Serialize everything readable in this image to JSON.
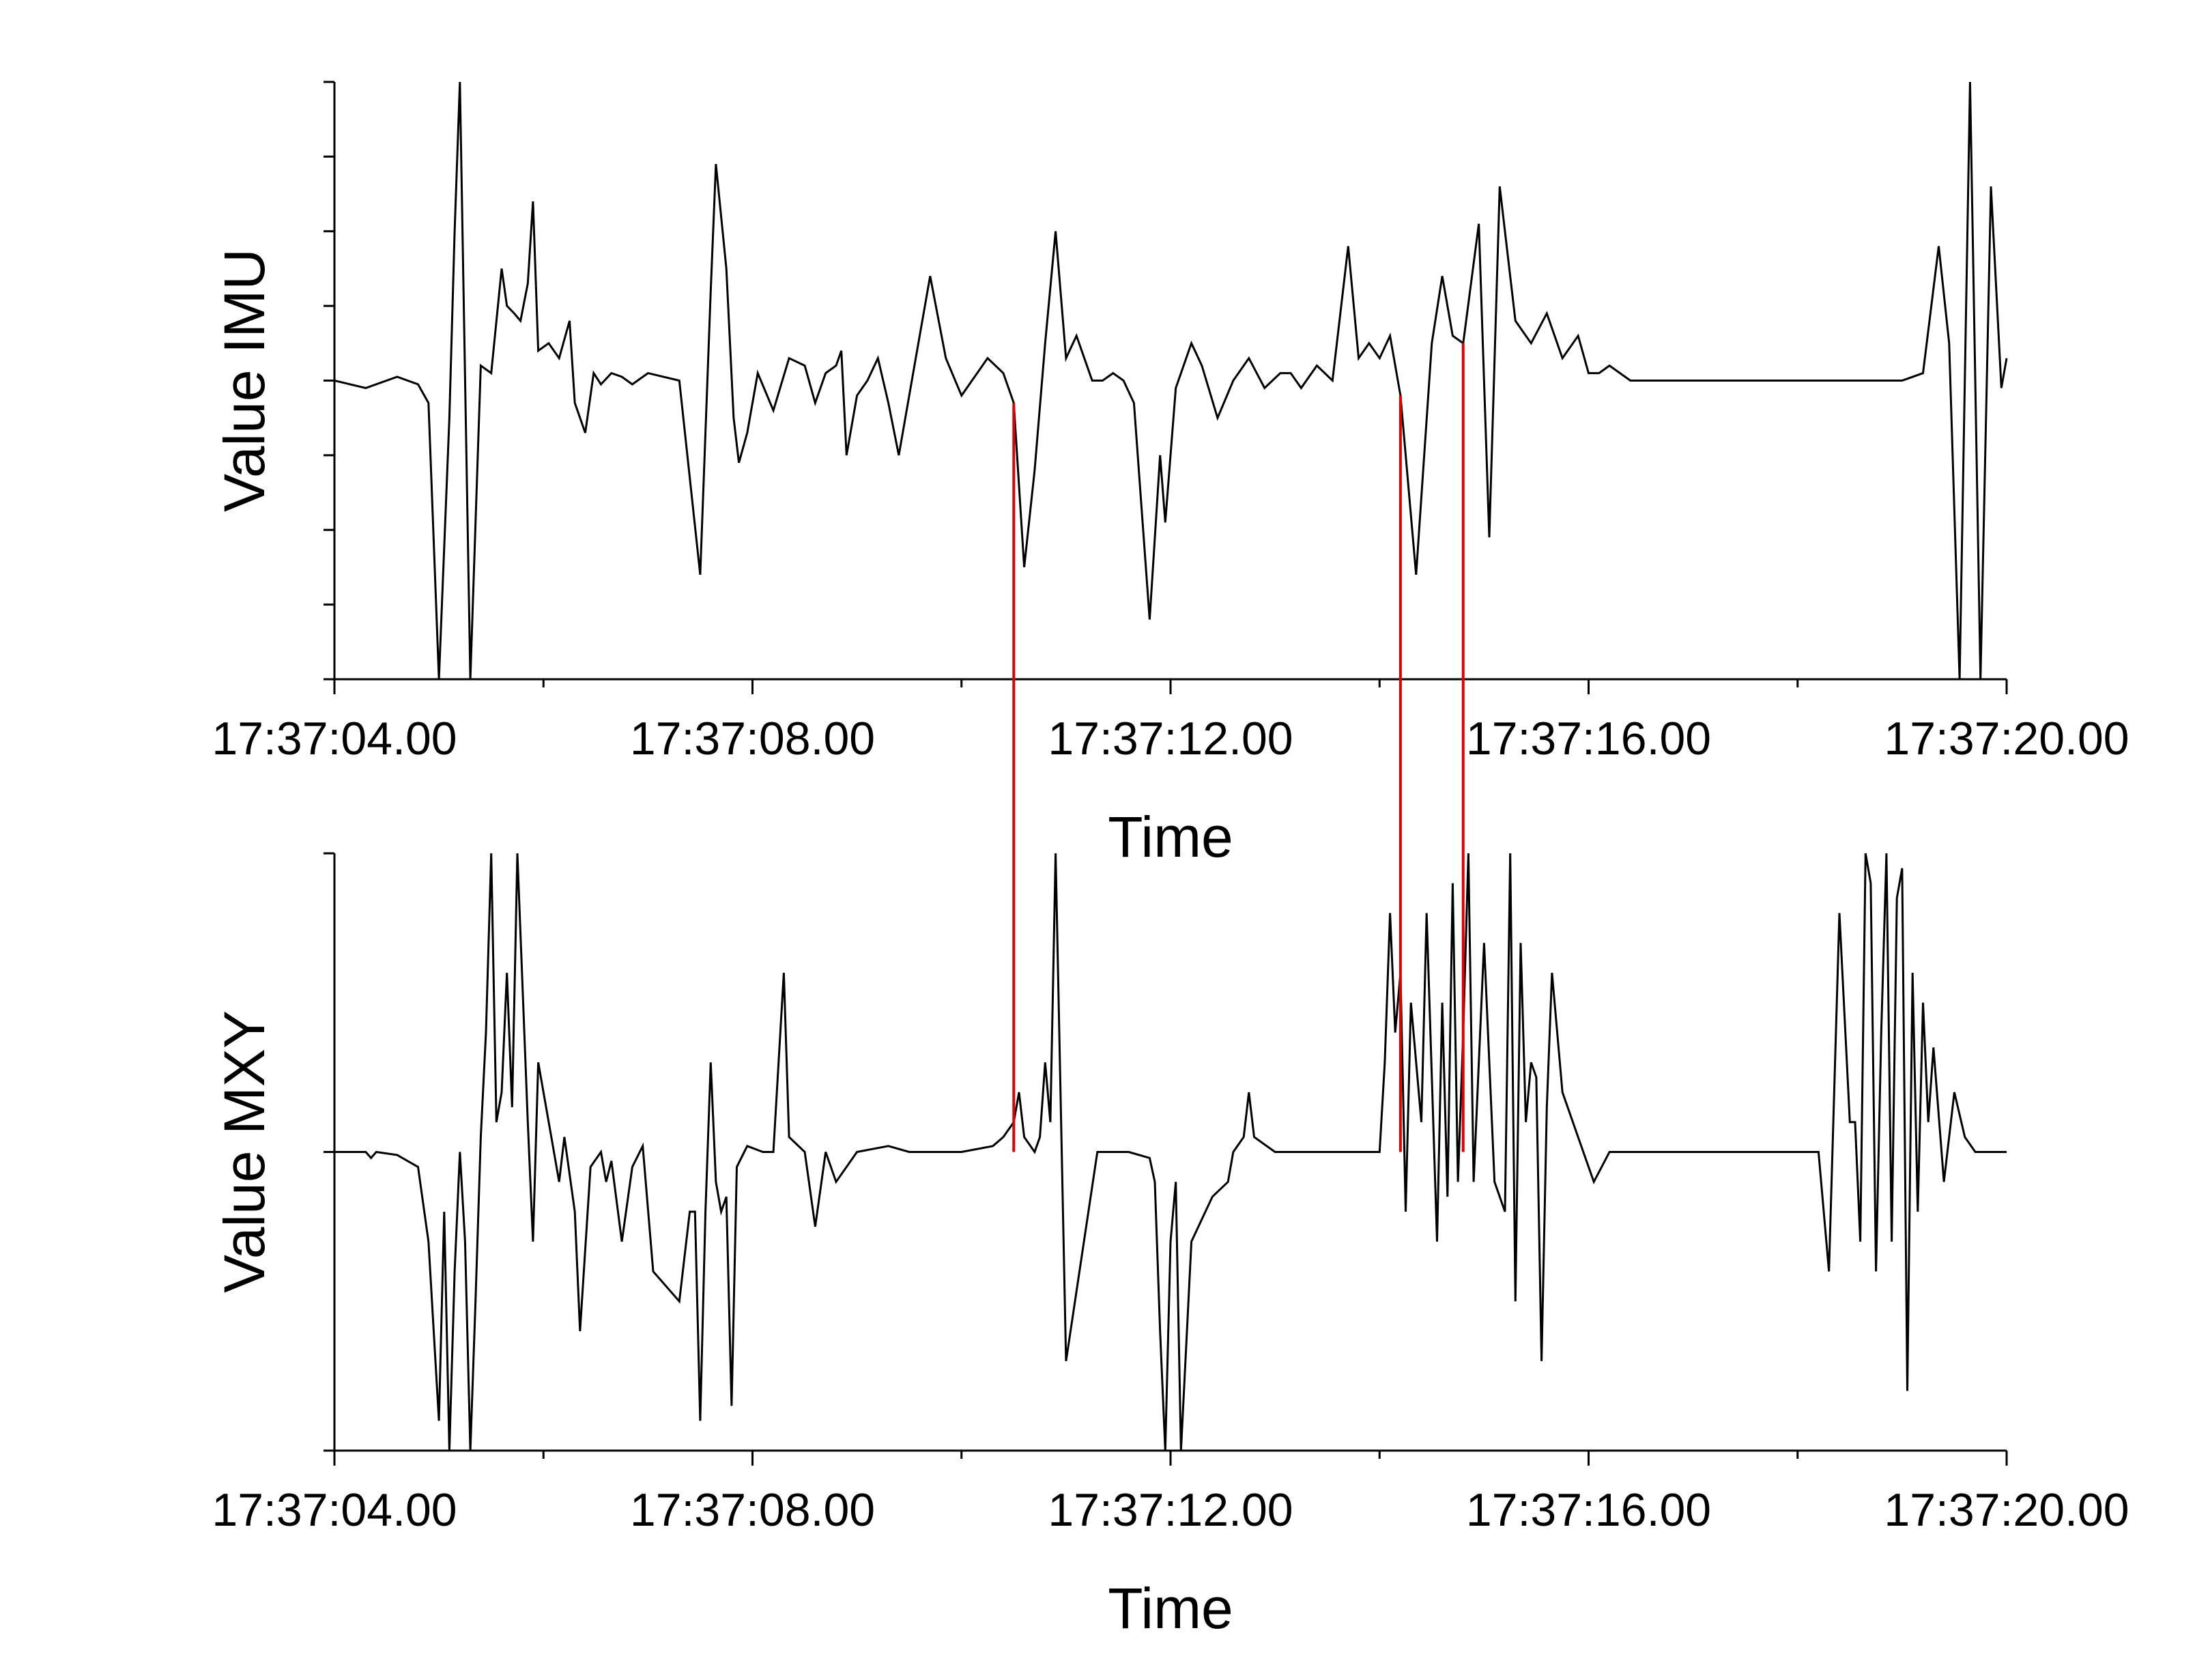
{
  "chart_data": [
    {
      "type": "line",
      "xlabel": "Time",
      "ylabel": "Value IMU",
      "x_unit": "seconds after 17:37:04.00",
      "xlim": [
        0,
        16
      ],
      "ylim": [
        -4,
        4
      ],
      "x_tick_labels": [
        "17:37:04.00",
        "17:37:08.00",
        "17:37:12.00",
        "17:37:16.00",
        "17:37:20.00"
      ],
      "x_major_ticks": [
        0,
        4,
        8,
        12,
        16
      ],
      "x_minor_ticks": [
        2,
        6,
        10,
        14
      ],
      "y_ticks": [
        -4,
        -3,
        -2,
        -1,
        0,
        1,
        2,
        3,
        4
      ],
      "y_tick_labels_shown": false,
      "series": [
        {
          "color": "#000000",
          "x": [
            0,
            0.3,
            0.6,
            0.8,
            0.9,
            1.0,
            1.1,
            1.15,
            1.2,
            1.3,
            1.4,
            1.5,
            1.6,
            1.65,
            1.72,
            1.78,
            1.85,
            1.9,
            1.95,
            2.05,
            2.15,
            2.25,
            2.3,
            2.4,
            2.48,
            2.55,
            2.65,
            2.75,
            2.85,
            3.0,
            3.3,
            3.5,
            3.6,
            3.65,
            3.75,
            3.82,
            3.87,
            3.95,
            4.05,
            4.2,
            4.35,
            4.5,
            4.6,
            4.7,
            4.8,
            4.85,
            4.9,
            5.0,
            5.1,
            5.2,
            5.3,
            5.4,
            5.55,
            5.7,
            5.85,
            6.0,
            6.1,
            6.25,
            6.4,
            6.5,
            6.6,
            6.7,
            6.8,
            6.9,
            7.0,
            7.1,
            7.25,
            7.35,
            7.45,
            7.55,
            7.65,
            7.8,
            7.9,
            7.95,
            8.05,
            8.2,
            8.3,
            8.45,
            8.6,
            8.75,
            8.9,
            9.05,
            9.15,
            9.25,
            9.4,
            9.55,
            9.7,
            9.8,
            9.9,
            10.0,
            10.1,
            10.2,
            10.35,
            10.5,
            10.6,
            10.7,
            10.8,
            10.95,
            11.05,
            11.15,
            11.3,
            11.45,
            11.6,
            11.75,
            11.9,
            12.0,
            12.1,
            12.2,
            12.4,
            12.6,
            13.0,
            13.5,
            14.0,
            14.5,
            15.0,
            15.2,
            15.35,
            15.45,
            15.55,
            15.65,
            15.75,
            15.85,
            15.95,
            16.0
          ],
          "y": [
            0,
            -0.1,
            0.05,
            -0.05,
            -0.3,
            -4.0,
            -0.5,
            2.0,
            4.5,
            -4.0,
            0.2,
            0.1,
            1.5,
            1.0,
            0.9,
            0.8,
            1.3,
            2.4,
            0.4,
            0.5,
            0.3,
            0.8,
            -0.3,
            -0.7,
            0.1,
            -0.05,
            0.1,
            0.05,
            -0.05,
            0.1,
            0.0,
            -2.6,
            1.2,
            2.9,
            1.5,
            -0.5,
            -1.1,
            -0.7,
            0.1,
            -0.4,
            0.3,
            0.2,
            -0.3,
            0.1,
            0.2,
            0.4,
            -1.0,
            -0.2,
            0.0,
            0.3,
            -0.3,
            -1.0,
            0.2,
            1.4,
            0.3,
            -0.2,
            0.0,
            0.3,
            0.1,
            -0.3,
            -2.5,
            -1.2,
            0.5,
            2.0,
            0.3,
            0.6,
            0.0,
            0.0,
            0.1,
            0.0,
            -0.3,
            -3.2,
            -1.0,
            -1.9,
            -0.1,
            0.5,
            0.2,
            -0.5,
            0.0,
            0.3,
            -0.1,
            0.1,
            0.1,
            -0.1,
            0.2,
            0.0,
            1.8,
            0.3,
            0.5,
            0.3,
            0.6,
            -0.2,
            -2.6,
            0.5,
            1.4,
            0.6,
            0.5,
            2.1,
            -2.1,
            2.6,
            0.8,
            0.5,
            0.9,
            0.3,
            0.6,
            0.1,
            0.1,
            0.2,
            0.0,
            0.0,
            0.0,
            0.0,
            0.0,
            0.0,
            0.0,
            0.1,
            1.8,
            0.5,
            -4.0,
            4.5,
            -4.0,
            2.6,
            -0.1,
            0.3
          ]
        }
      ],
      "markers_x": [
        6.5,
        10.2,
        10.8
      ]
    },
    {
      "type": "line",
      "xlabel": "Time",
      "ylabel": "Value MXY",
      "x_unit": "seconds after 17:37:04.00",
      "xlim": [
        0,
        16
      ],
      "ylim": [
        -1,
        1
      ],
      "x_tick_labels": [
        "17:37:04.00",
        "17:37:08.00",
        "17:37:12.00",
        "17:37:16.00",
        "17:37:20.00"
      ],
      "x_major_ticks": [
        0,
        4,
        8,
        12,
        16
      ],
      "x_minor_ticks": [
        2,
        6,
        10,
        14
      ],
      "y_ticks": [
        -1,
        0,
        1
      ],
      "y_tick_labels_shown": false,
      "series": [
        {
          "color": "#000000",
          "x": [
            0,
            0.3,
            0.35,
            0.4,
            0.6,
            0.8,
            0.9,
            1.0,
            1.05,
            1.1,
            1.15,
            1.2,
            1.25,
            1.3,
            1.35,
            1.4,
            1.45,
            1.5,
            1.55,
            1.6,
            1.65,
            1.7,
            1.75,
            1.85,
            1.9,
            1.95,
            2.1,
            2.15,
            2.2,
            2.3,
            2.35,
            2.45,
            2.55,
            2.6,
            2.65,
            2.75,
            2.85,
            2.95,
            3.05,
            3.3,
            3.4,
            3.45,
            3.5,
            3.55,
            3.6,
            3.65,
            3.7,
            3.75,
            3.8,
            3.85,
            3.95,
            4.1,
            4.2,
            4.3,
            4.35,
            4.5,
            4.6,
            4.7,
            4.8,
            5.0,
            5.3,
            5.5,
            6.0,
            6.3,
            6.4,
            6.5,
            6.55,
            6.6,
            6.7,
            6.75,
            6.8,
            6.85,
            6.9,
            7.0,
            7.3,
            7.6,
            7.8,
            7.85,
            7.9,
            7.95,
            8.0,
            8.05,
            8.1,
            8.2,
            8.4,
            8.55,
            8.6,
            8.7,
            8.75,
            8.8,
            9.0,
            9.5,
            10.0,
            10.05,
            10.1,
            10.15,
            10.2,
            10.25,
            10.3,
            10.4,
            10.45,
            10.55,
            10.6,
            10.65,
            10.7,
            10.75,
            10.8,
            10.85,
            10.9,
            10.95,
            11.0,
            11.1,
            11.2,
            11.25,
            11.3,
            11.35,
            11.4,
            11.45,
            11.5,
            11.55,
            11.6,
            11.65,
            11.75,
            11.85,
            11.95,
            12.05,
            12.2,
            13.0,
            14.0,
            14.2,
            14.3,
            14.4,
            14.5,
            14.55,
            14.6,
            14.65,
            14.7,
            14.75,
            14.8,
            14.85,
            14.9,
            14.95,
            15.0,
            15.05,
            15.1,
            15.15,
            15.2,
            15.25,
            15.3,
            15.4,
            15.5,
            15.6,
            15.7,
            15.8,
            15.9,
            16.0
          ],
          "y": [
            0,
            0,
            -0.02,
            0,
            -0.01,
            -0.05,
            -0.3,
            -0.9,
            -0.2,
            -1.0,
            -0.4,
            0,
            -0.3,
            -1.0,
            -0.5,
            0.05,
            0.4,
            1.0,
            0.1,
            0.2,
            0.6,
            0.15,
            1.0,
            0.1,
            -0.3,
            0.3,
            0,
            -0.1,
            0.05,
            -0.2,
            -0.6,
            -0.05,
            0,
            -0.1,
            -0.03,
            -0.3,
            -0.05,
            0.02,
            -0.4,
            -0.5,
            -0.2,
            -0.2,
            -0.9,
            -0.2,
            0.3,
            -0.1,
            -0.2,
            -0.15,
            -0.85,
            -0.05,
            0.02,
            0,
            0.0,
            0.6,
            0.05,
            0,
            -0.25,
            0,
            -0.1,
            0,
            0.02,
            0,
            0,
            0.02,
            0.05,
            0.1,
            0.2,
            0.05,
            0,
            0.05,
            0.3,
            0.1,
            1.0,
            -0.7,
            0,
            0,
            -0.02,
            -0.1,
            -0.6,
            -1.0,
            -0.3,
            -0.1,
            -1.0,
            -0.3,
            -0.15,
            -0.1,
            0,
            0.05,
            0.2,
            0.05,
            0,
            0,
            0,
            0.3,
            0.8,
            0.4,
            0.6,
            -0.2,
            0.5,
            0.1,
            0.8,
            -0.3,
            0.5,
            -0.15,
            0.9,
            -0.1,
            0.4,
            1.0,
            -0.1,
            0.3,
            0.7,
            -0.1,
            -0.2,
            1.0,
            -0.5,
            0.7,
            0.1,
            0.3,
            0.25,
            -0.7,
            0.15,
            0.6,
            0.2,
            0.1,
            0,
            -0.1,
            0,
            0,
            0,
            0,
            -0.4,
            0.8,
            0.1,
            0.1,
            -0.3,
            1.0,
            0.9,
            -0.4,
            0.4,
            1.0,
            -0.3,
            0.85,
            0.95,
            -0.8,
            0.6,
            -0.2,
            0.5,
            0.1,
            0.35,
            -0.1,
            0.2,
            0.05,
            0.0,
            0,
            0,
            0
          ]
        }
      ],
      "markers_x": [
        6.5,
        10.2,
        10.8
      ]
    }
  ],
  "markers": {
    "color": "#e00000"
  }
}
